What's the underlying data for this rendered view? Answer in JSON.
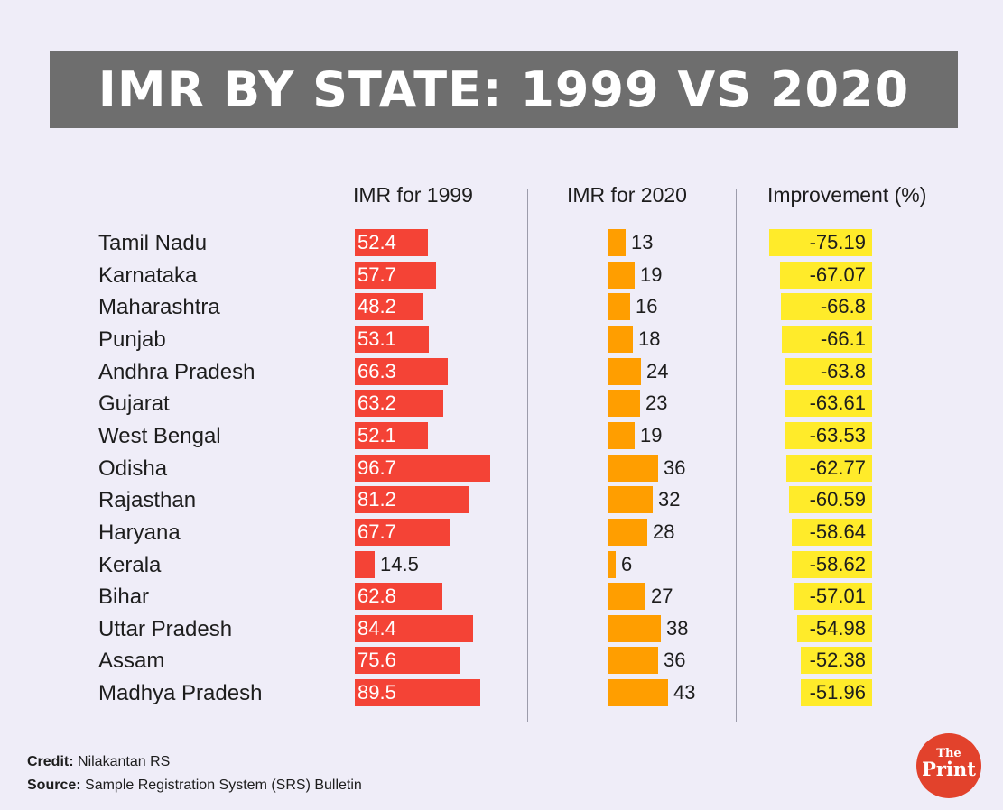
{
  "title": "IMR BY STATE: 1999 VS 2020",
  "headers": {
    "imr1999": "IMR for 1999",
    "imr2020": "IMR for 2020",
    "improvement": "Improvement (%)"
  },
  "colors": {
    "background": "#efedf8",
    "title_banner": "#6e6e6e",
    "bar_1999": "#f44336",
    "bar_2020": "#ff9e00",
    "bar_improvement": "#ffeb2a",
    "logo": "#e2422c"
  },
  "chart_data": {
    "type": "bar",
    "orientation": "horizontal",
    "title": "IMR BY STATE: 1999 VS 2020",
    "categories": [
      "Tamil Nadu",
      "Karnataka",
      "Maharashtra",
      "Punjab",
      "Andhra Pradesh",
      "Gujarat",
      "West Bengal",
      "Odisha",
      "Rajasthan",
      "Haryana",
      "Kerala",
      "Bihar",
      "Uttar Pradesh",
      "Assam",
      "Madhya Pradesh"
    ],
    "series": [
      {
        "name": "IMR for 1999",
        "values": [
          52.4,
          57.7,
          48.2,
          53.1,
          66.3,
          63.2,
          52.1,
          96.7,
          81.2,
          67.7,
          14.5,
          62.8,
          84.4,
          75.6,
          89.5
        ]
      },
      {
        "name": "IMR for 2020",
        "values": [
          13,
          19,
          16,
          18,
          24,
          23,
          19,
          36,
          32,
          28,
          6,
          27,
          38,
          36,
          43
        ]
      },
      {
        "name": "Improvement (%)",
        "values": [
          -75.19,
          -67.07,
          -66.8,
          -66.1,
          -63.8,
          -63.61,
          -63.53,
          -62.77,
          -60.59,
          -58.64,
          -58.62,
          -57.01,
          -54.98,
          -52.38,
          -51.96
        ]
      }
    ],
    "labels": {
      "imr1999": [
        "52.4",
        "57.7",
        "48.2",
        "53.1",
        "66.3",
        "63.2",
        "52.1",
        "96.7",
        "81.2",
        "67.7",
        "14.5",
        "62.8",
        "84.4",
        "75.6",
        "89.5"
      ],
      "imr2020": [
        "13",
        "19",
        "16",
        "18",
        "24",
        "23",
        "19",
        "36",
        "32",
        "28",
        "6",
        "27",
        "38",
        "36",
        "43"
      ],
      "improvement": [
        "-75.19",
        "-67.07",
        "-66.8",
        "-66.1",
        "-63.8",
        "-63.61",
        "-63.53",
        "-62.77",
        "-60.59",
        "-58.64",
        "-58.62",
        "-57.01",
        "-54.98",
        "-52.38",
        "-51.96"
      ]
    },
    "grid": false,
    "legend": "none"
  },
  "footer": {
    "credit_label": "Credit:",
    "credit_value": "Nilakantan RS",
    "source_label": "Source:",
    "source_value": "Sample Registration System (SRS) Bulletin"
  },
  "logo": {
    "name": "ThePrint logo",
    "text_the": "The",
    "text_print": "Print"
  }
}
